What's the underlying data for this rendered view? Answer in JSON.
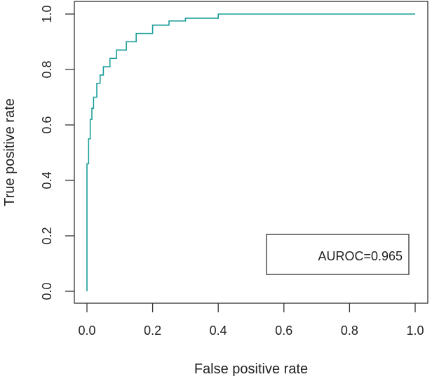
{
  "chart_data": {
    "type": "line",
    "title": "",
    "xlabel": "False positive rate",
    "ylabel": "True positive rate",
    "xlim": [
      0,
      1
    ],
    "ylim": [
      0,
      1
    ],
    "xticks": [
      "0.0",
      "0.2",
      "0.4",
      "0.6",
      "0.8",
      "1.0"
    ],
    "yticks": [
      "0.0",
      "0.2",
      "0.4",
      "0.6",
      "0.8",
      "1.0"
    ],
    "grid": false,
    "legend": {
      "text": "AUROC=0.965",
      "placement": "bottom-right"
    },
    "series": [
      {
        "name": "ROC",
        "color": "#1a9e9a",
        "x": [
          0,
          0,
          0.005,
          0.01,
          0.015,
          0.02,
          0.03,
          0.04,
          0.05,
          0.07,
          0.09,
          0.12,
          0.15,
          0.2,
          0.25,
          0.3,
          0.4,
          1.0
        ],
        "y": [
          0,
          0.46,
          0.55,
          0.62,
          0.66,
          0.7,
          0.75,
          0.78,
          0.81,
          0.84,
          0.87,
          0.9,
          0.93,
          0.96,
          0.975,
          0.985,
          1.0,
          1.0
        ]
      }
    ]
  }
}
